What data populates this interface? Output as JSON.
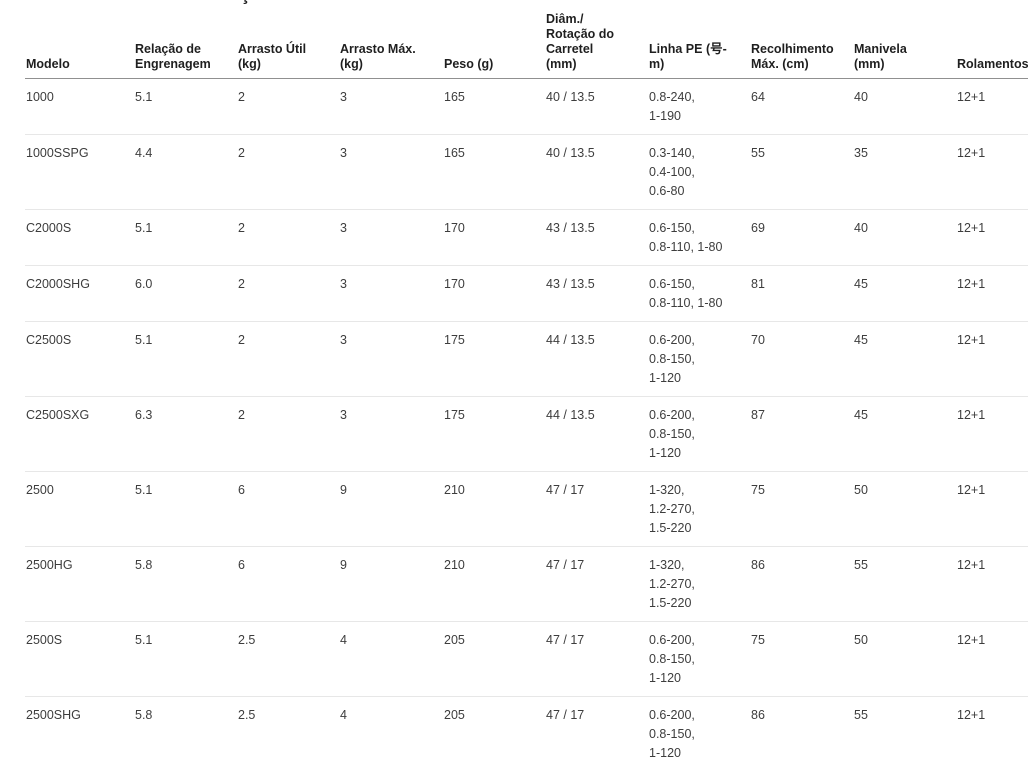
{
  "page": {
    "cropped_title_fragment": "ç"
  },
  "colors": {
    "background": "#ffffff",
    "header_text": "#1f1f1f",
    "body_text": "#3d3d3d",
    "header_divider": "#909090",
    "row_divider": "#e7e7e7"
  },
  "table": {
    "columns": [
      {
        "key": "model",
        "label": "Modelo"
      },
      {
        "key": "gear_ratio",
        "label": "Relação de\nEngrenagem"
      },
      {
        "key": "drag_useful",
        "label": "Arrasto Útil\n(kg)"
      },
      {
        "key": "drag_max",
        "label": "Arrasto Máx.\n(kg)"
      },
      {
        "key": "weight",
        "label": "Peso (g)"
      },
      {
        "key": "spool",
        "label": "Diâm./\nRotação do\nCarretel\n(mm)"
      },
      {
        "key": "line_pe",
        "label": "Linha PE (号-\nm)"
      },
      {
        "key": "max_retrieve",
        "label": "Recolhimento\nMáx. (cm)"
      },
      {
        "key": "handle",
        "label": "Manivela\n(mm)"
      },
      {
        "key": "bearings",
        "label": "Rolamentos"
      }
    ],
    "rows": [
      {
        "model": "1000",
        "gear_ratio": "5.1",
        "drag_useful": "2",
        "drag_max": "3",
        "weight": "165",
        "spool": "40 / 13.5",
        "line_pe": "0.8-240,\n1-190",
        "max_retrieve": "64",
        "handle": "40",
        "bearings": "12+1"
      },
      {
        "model": "1000SSPG",
        "gear_ratio": "4.4",
        "drag_useful": "2",
        "drag_max": "3",
        "weight": "165",
        "spool": "40 / 13.5",
        "line_pe": "0.3-140,\n0.4-100,\n0.6-80",
        "max_retrieve": "55",
        "handle": "35",
        "bearings": "12+1"
      },
      {
        "model": "C2000S",
        "gear_ratio": "5.1",
        "drag_useful": "2",
        "drag_max": "3",
        "weight": "170",
        "spool": "43 / 13.5",
        "line_pe": "0.6-150,\n0.8-110, 1-80",
        "max_retrieve": "69",
        "handle": "40",
        "bearings": "12+1"
      },
      {
        "model": "C2000SHG",
        "gear_ratio": "6.0",
        "drag_useful": "2",
        "drag_max": "3",
        "weight": "170",
        "spool": "43 / 13.5",
        "line_pe": "0.6-150,\n0.8-110, 1-80",
        "max_retrieve": "81",
        "handle": "45",
        "bearings": "12+1"
      },
      {
        "model": "C2500S",
        "gear_ratio": "5.1",
        "drag_useful": "2",
        "drag_max": "3",
        "weight": "175",
        "spool": "44 / 13.5",
        "line_pe": "0.6-200,\n0.8-150,\n1-120",
        "max_retrieve": "70",
        "handle": "45",
        "bearings": "12+1"
      },
      {
        "model": "C2500SXG",
        "gear_ratio": "6.3",
        "drag_useful": "2",
        "drag_max": "3",
        "weight": "175",
        "spool": "44 / 13.5",
        "line_pe": "0.6-200,\n0.8-150,\n1-120",
        "max_retrieve": "87",
        "handle": "45",
        "bearings": "12+1"
      },
      {
        "model": "2500",
        "gear_ratio": "5.1",
        "drag_useful": "6",
        "drag_max": "9",
        "weight": "210",
        "spool": "47 / 17",
        "line_pe": "1-320,\n1.2-270,\n1.5-220",
        "max_retrieve": "75",
        "handle": "50",
        "bearings": "12+1"
      },
      {
        "model": "2500HG",
        "gear_ratio": "5.8",
        "drag_useful": "6",
        "drag_max": "9",
        "weight": "210",
        "spool": "47 / 17",
        "line_pe": "1-320,\n1.2-270,\n1.5-220",
        "max_retrieve": "86",
        "handle": "55",
        "bearings": "12+1"
      },
      {
        "model": "2500S",
        "gear_ratio": "5.1",
        "drag_useful": "2.5",
        "drag_max": "4",
        "weight": "205",
        "spool": "47 / 17",
        "line_pe": "0.6-200,\n0.8-150,\n1-120",
        "max_retrieve": "75",
        "handle": "50",
        "bearings": "12+1"
      },
      {
        "model": "2500SHG",
        "gear_ratio": "5.8",
        "drag_useful": "2.5",
        "drag_max": "4",
        "weight": "205",
        "spool": "47 / 17",
        "line_pe": "0.6-200,\n0.8-150,\n1-120",
        "max_retrieve": "86",
        "handle": "55",
        "bearings": "12+1"
      }
    ]
  }
}
